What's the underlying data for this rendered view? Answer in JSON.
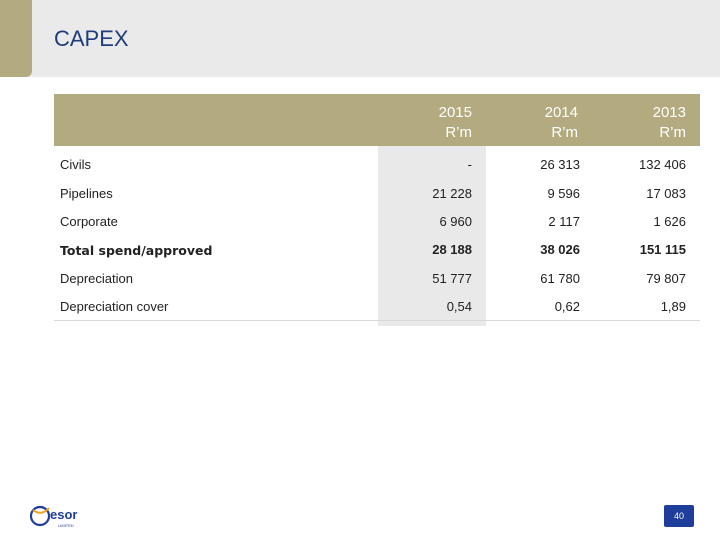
{
  "title": "CAPEX",
  "columns": [
    {
      "year": "2015",
      "unit": "R’m"
    },
    {
      "year": "2014",
      "unit": "R’m"
    },
    {
      "year": "2013",
      "unit": "R’m"
    }
  ],
  "rows": [
    {
      "label": "Civils",
      "values": [
        "-",
        "26 313",
        "132 406"
      ]
    },
    {
      "label": "Pipelines",
      "values": [
        "21 228",
        "9 596",
        "17 083"
      ]
    },
    {
      "label": "Corporate",
      "values": [
        "6 960",
        "2 117",
        "1 626"
      ]
    },
    {
      "label": "Total spend/approved",
      "values": [
        "28 188",
        "38 026",
        "151 115"
      ]
    },
    {
      "label": "Depreciation",
      "values": [
        "51 777",
        "61 780",
        "79 807"
      ]
    },
    {
      "label": "Depreciation cover",
      "values": [
        "0,54",
        "0,62",
        "1,89"
      ]
    }
  ],
  "logo": {
    "name": "esor",
    "tagline": "LIMITED"
  },
  "page_number": "40",
  "colors": {
    "accent": "#b3aa7f",
    "title": "#1f3d7a",
    "highlight": "#e9e9e9",
    "badge": "#1f3d9a"
  }
}
